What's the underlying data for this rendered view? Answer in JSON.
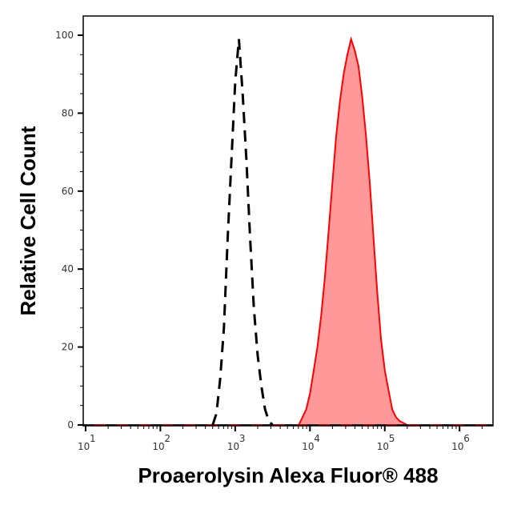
{
  "chart_data": {
    "type": "area",
    "title": "",
    "xlabel": "Proaerolysin Alexa Fluor® 488",
    "ylabel": "Relative Cell Count",
    "xscale": "log",
    "xlim": [
      9.3,
      2800000
    ],
    "ylim": [
      0,
      100
    ],
    "grid": false,
    "yticks": [
      0,
      20,
      40,
      60,
      80,
      100
    ],
    "xticks": [
      {
        "value": 10,
        "base": "10",
        "exp": "1"
      },
      {
        "value": 100,
        "base": "10",
        "exp": "2"
      },
      {
        "value": 1000,
        "base": "10",
        "exp": "3"
      },
      {
        "value": 10000,
        "base": "10",
        "exp": "4"
      },
      {
        "value": 100000,
        "base": "10",
        "exp": "5"
      },
      {
        "value": 1000000,
        "base": "10",
        "exp": "6"
      }
    ],
    "series": [
      {
        "style": "dashed-line",
        "color": "#000000",
        "x": [
          501,
          562,
          631,
          708,
          794,
          891,
          1000,
          1122,
          1259,
          1413,
          1585,
          1778,
          1995,
          2239,
          2512,
          2818,
          3162
        ],
        "y": [
          0,
          3,
          12,
          25,
          48,
          68,
          88,
          99,
          85,
          68,
          48,
          30,
          18,
          10,
          4,
          1,
          0
        ]
      },
      {
        "style": "filled",
        "color": "#ff0000",
        "fill": "#ff9999",
        "x": [
          7079,
          7943,
          8913,
          10000,
          11220,
          12589,
          14125,
          15849,
          17783,
          19953,
          22387,
          25119,
          28184,
          31623,
          35481,
          39811,
          44668,
          50119,
          56234,
          63096,
          70795,
          79433,
          89125,
          100000,
          112202,
          125893,
          141254,
          158489,
          199526
        ],
        "y": [
          0,
          2,
          4,
          8,
          14,
          20,
          28,
          38,
          50,
          62,
          74,
          83,
          90,
          95,
          99,
          96,
          92,
          84,
          74,
          62,
          48,
          34,
          22,
          14,
          9,
          4,
          2,
          1,
          0
        ]
      }
    ]
  }
}
